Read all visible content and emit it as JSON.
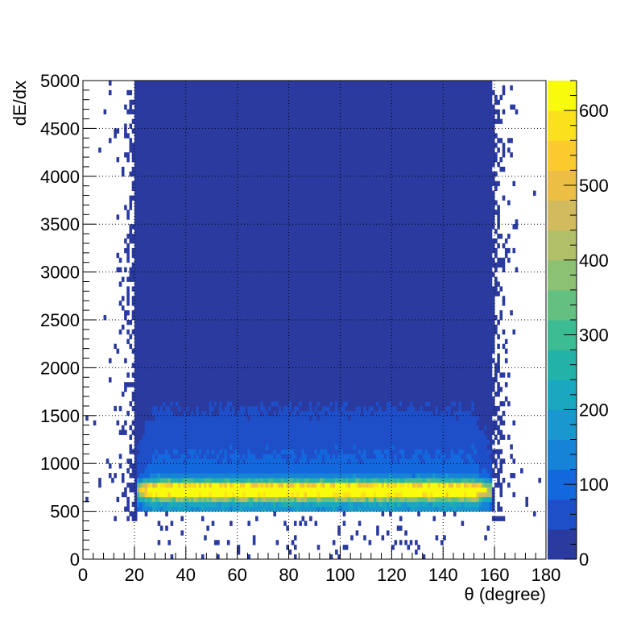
{
  "chart_data": {
    "type": "heatmap",
    "title": "",
    "xlabel": "θ (degree)",
    "ylabel": "dE/dx",
    "xlim": [
      0,
      180
    ],
    "ylim": [
      0,
      5000
    ],
    "x_ticks": [
      "0",
      "20",
      "40",
      "60",
      "80",
      "100",
      "120",
      "140",
      "160",
      "180"
    ],
    "y_ticks": [
      "0",
      "500",
      "1000",
      "1500",
      "2000",
      "2500",
      "3000",
      "3500",
      "4000",
      "4500",
      "5000"
    ],
    "grid": true,
    "colorbar": {
      "range": [
        0,
        640
      ],
      "ticks": [
        "0",
        "100",
        "200",
        "300",
        "400",
        "500",
        "600"
      ],
      "palette": [
        "#2a3a9e",
        "#1f4fc8",
        "#1468de",
        "#1683d6",
        "#1898cf",
        "#1aa8c0",
        "#22b2a8",
        "#3dbb93",
        "#63c080",
        "#8cc173",
        "#b1bf68",
        "#d2bb5e",
        "#ecbe44",
        "#fbcb2e",
        "#fbe11c",
        "#f8fb0c"
      ]
    },
    "description_of_density": {
      "x_band": [
        20,
        160
      ],
      "peak_dEdx": [
        600,
        850
      ],
      "peak_count": 640,
      "background_count": 5
    }
  }
}
